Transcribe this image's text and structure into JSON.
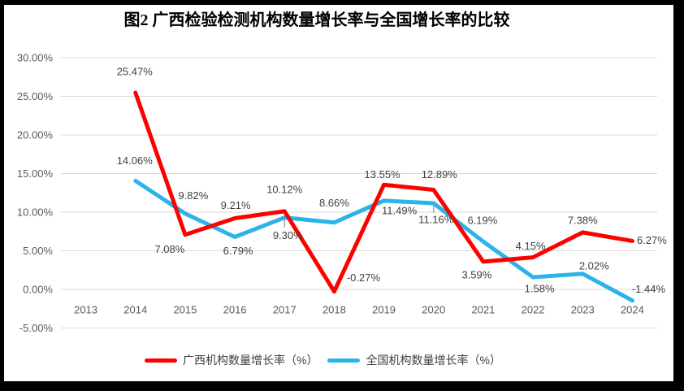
{
  "frame_color": "#000000",
  "chart_data": {
    "type": "line",
    "title": "图2 广西检验检测机构数量增长率与全国增长率的比较",
    "categories": [
      2013,
      2014,
      2015,
      2016,
      2017,
      2018,
      2019,
      2020,
      2021,
      2022,
      2023,
      2024
    ],
    "series": [
      {
        "name": "广西机构数量增长率（%）",
        "color": "#FF0000",
        "x": [
          2014,
          2015,
          2016,
          2017,
          2018,
          2019,
          2020,
          2021,
          2022,
          2023,
          2024
        ],
        "values": [
          25.47,
          7.08,
          9.21,
          10.12,
          -0.27,
          13.55,
          12.89,
          3.59,
          4.15,
          7.38,
          6.27
        ]
      },
      {
        "name": "全国机构数量增长率（%）",
        "color": "#2BB3EA",
        "x": [
          2014,
          2015,
          2016,
          2017,
          2018,
          2019,
          2020,
          2021,
          2022,
          2023,
          2024
        ],
        "values": [
          14.06,
          9.82,
          6.79,
          9.3,
          8.66,
          11.49,
          11.16,
          6.19,
          1.58,
          2.02,
          -1.44
        ]
      }
    ],
    "ylim": [
      -5,
      30
    ],
    "ytick_step": 5,
    "ytick_labels": [
      "30.00%",
      "25.00%",
      "20.00%",
      "15.00%",
      "10.00%",
      "5.00%",
      "0.00%",
      "-5.00%"
    ],
    "data_label_format": "0.00%",
    "grid": true,
    "legend_position": "bottom",
    "axis_text_color": "#595959",
    "data_label_color": "#404040",
    "gridline_color": "#D9D9D9",
    "leader_line_color": "#A6A6A6"
  }
}
